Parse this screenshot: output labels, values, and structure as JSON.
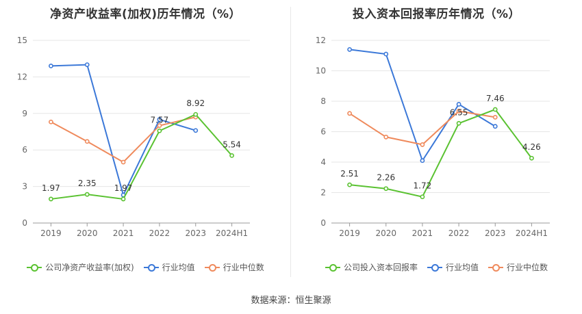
{
  "chart_data": [
    {
      "type": "line",
      "title": "净资产收益率(加权)历年情况（%）",
      "categories": [
        "2019",
        "2020",
        "2021",
        "2022",
        "2023",
        "2024H1"
      ],
      "ylim": [
        0,
        15
      ],
      "yticks": [
        0,
        3,
        6,
        9,
        12,
        15
      ],
      "grid": true,
      "legend_position": "bottom",
      "series": [
        {
          "name": "公司净资产收益率(加权)",
          "color": "#5ac231",
          "values": [
            1.97,
            2.35,
            1.97,
            7.57,
            8.92,
            5.54
          ],
          "labels": [
            "1.97",
            "2.35",
            "1.97",
            "7.57",
            "8.92",
            "5.54"
          ]
        },
        {
          "name": "行业均值",
          "color": "#3b78d8",
          "values": [
            12.9,
            13.0,
            2.3,
            8.5,
            7.6,
            null
          ],
          "labels": []
        },
        {
          "name": "行业中位数",
          "color": "#ef8a5c",
          "values": [
            8.3,
            6.7,
            5.0,
            8.0,
            8.7,
            null
          ],
          "labels": []
        }
      ]
    },
    {
      "type": "line",
      "title": "投入资本回报率历年情况（%）",
      "categories": [
        "2019",
        "2020",
        "2021",
        "2022",
        "2023",
        "2024H1"
      ],
      "ylim": [
        0,
        12
      ],
      "yticks": [
        0,
        2,
        4,
        6,
        8,
        10,
        12
      ],
      "grid": true,
      "legend_position": "bottom",
      "series": [
        {
          "name": "公司投入资本回报率",
          "color": "#5ac231",
          "values": [
            2.51,
            2.26,
            1.72,
            6.55,
            7.46,
            4.26
          ],
          "labels": [
            "2.51",
            "2.26",
            "1.72",
            "6.55",
            "7.46",
            "4.26"
          ]
        },
        {
          "name": "行业均值",
          "color": "#3b78d8",
          "values": [
            11.4,
            11.1,
            4.1,
            7.8,
            6.35,
            null
          ],
          "labels": []
        },
        {
          "name": "行业中位数",
          "color": "#ef8a5c",
          "values": [
            7.2,
            5.65,
            5.15,
            7.35,
            6.95,
            null
          ],
          "labels": []
        }
      ]
    }
  ],
  "footer": "数据来源：恒生聚源"
}
